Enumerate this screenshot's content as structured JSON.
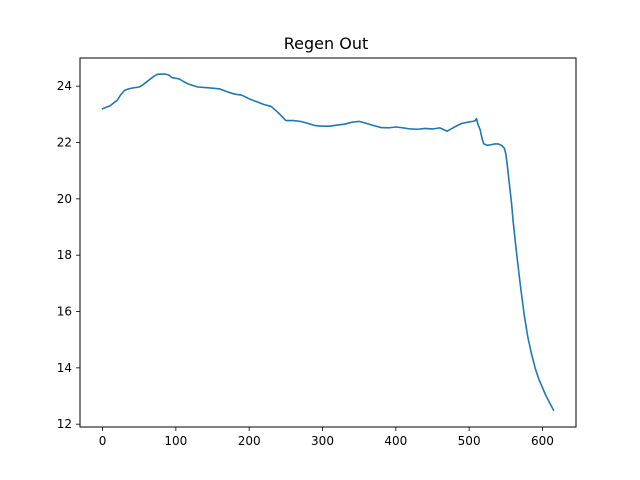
{
  "chart_data": {
    "type": "line",
    "title": "Regen Out",
    "xlabel": "",
    "ylabel": "",
    "xlim": [
      -30.75,
      645.75
    ],
    "ylim": [
      11.9,
      25.0
    ],
    "xticks": [
      0,
      100,
      200,
      300,
      400,
      500,
      600
    ],
    "yticks": [
      12,
      14,
      16,
      18,
      20,
      22,
      24
    ],
    "grid": false,
    "legend": null,
    "series": [
      {
        "color": "#1f77b4",
        "x": [
          0,
          10,
          20,
          25,
          30,
          35,
          40,
          50,
          55,
          60,
          65,
          70,
          75,
          80,
          85,
          90,
          95,
          100,
          105,
          110,
          115,
          120,
          130,
          140,
          150,
          160,
          170,
          180,
          190,
          200,
          210,
          220,
          230,
          240,
          250,
          260,
          270,
          280,
          290,
          300,
          310,
          320,
          330,
          340,
          350,
          360,
          370,
          380,
          390,
          400,
          410,
          420,
          430,
          440,
          450,
          460,
          470,
          480,
          490,
          500,
          505,
          508,
          510,
          512,
          515,
          518,
          520,
          525,
          530,
          535,
          540,
          545,
          548,
          550,
          552,
          555,
          558,
          560,
          565,
          570,
          575,
          580,
          585,
          590,
          595,
          600,
          605,
          610,
          615
        ],
        "y": [
          23.2,
          23.3,
          23.5,
          23.7,
          23.85,
          23.9,
          23.93,
          23.97,
          24.05,
          24.15,
          24.25,
          24.35,
          24.42,
          24.43,
          24.43,
          24.4,
          24.3,
          24.28,
          24.25,
          24.17,
          24.1,
          24.05,
          23.97,
          23.95,
          23.93,
          23.9,
          23.8,
          23.72,
          23.68,
          23.55,
          23.45,
          23.35,
          23.28,
          23.05,
          22.78,
          22.78,
          22.75,
          22.68,
          22.6,
          22.58,
          22.58,
          22.62,
          22.65,
          22.72,
          22.75,
          22.68,
          22.6,
          22.53,
          22.52,
          22.55,
          22.52,
          22.48,
          22.47,
          22.5,
          22.48,
          22.52,
          22.4,
          22.55,
          22.68,
          22.73,
          22.75,
          22.77,
          22.85,
          22.65,
          22.45,
          22.1,
          21.95,
          21.9,
          21.92,
          21.95,
          21.95,
          21.88,
          21.8,
          21.6,
          21.2,
          20.5,
          19.8,
          19.2,
          18.0,
          16.9,
          15.9,
          15.1,
          14.5,
          14.0,
          13.6,
          13.3,
          13.0,
          12.75,
          12.5
        ]
      }
    ]
  }
}
